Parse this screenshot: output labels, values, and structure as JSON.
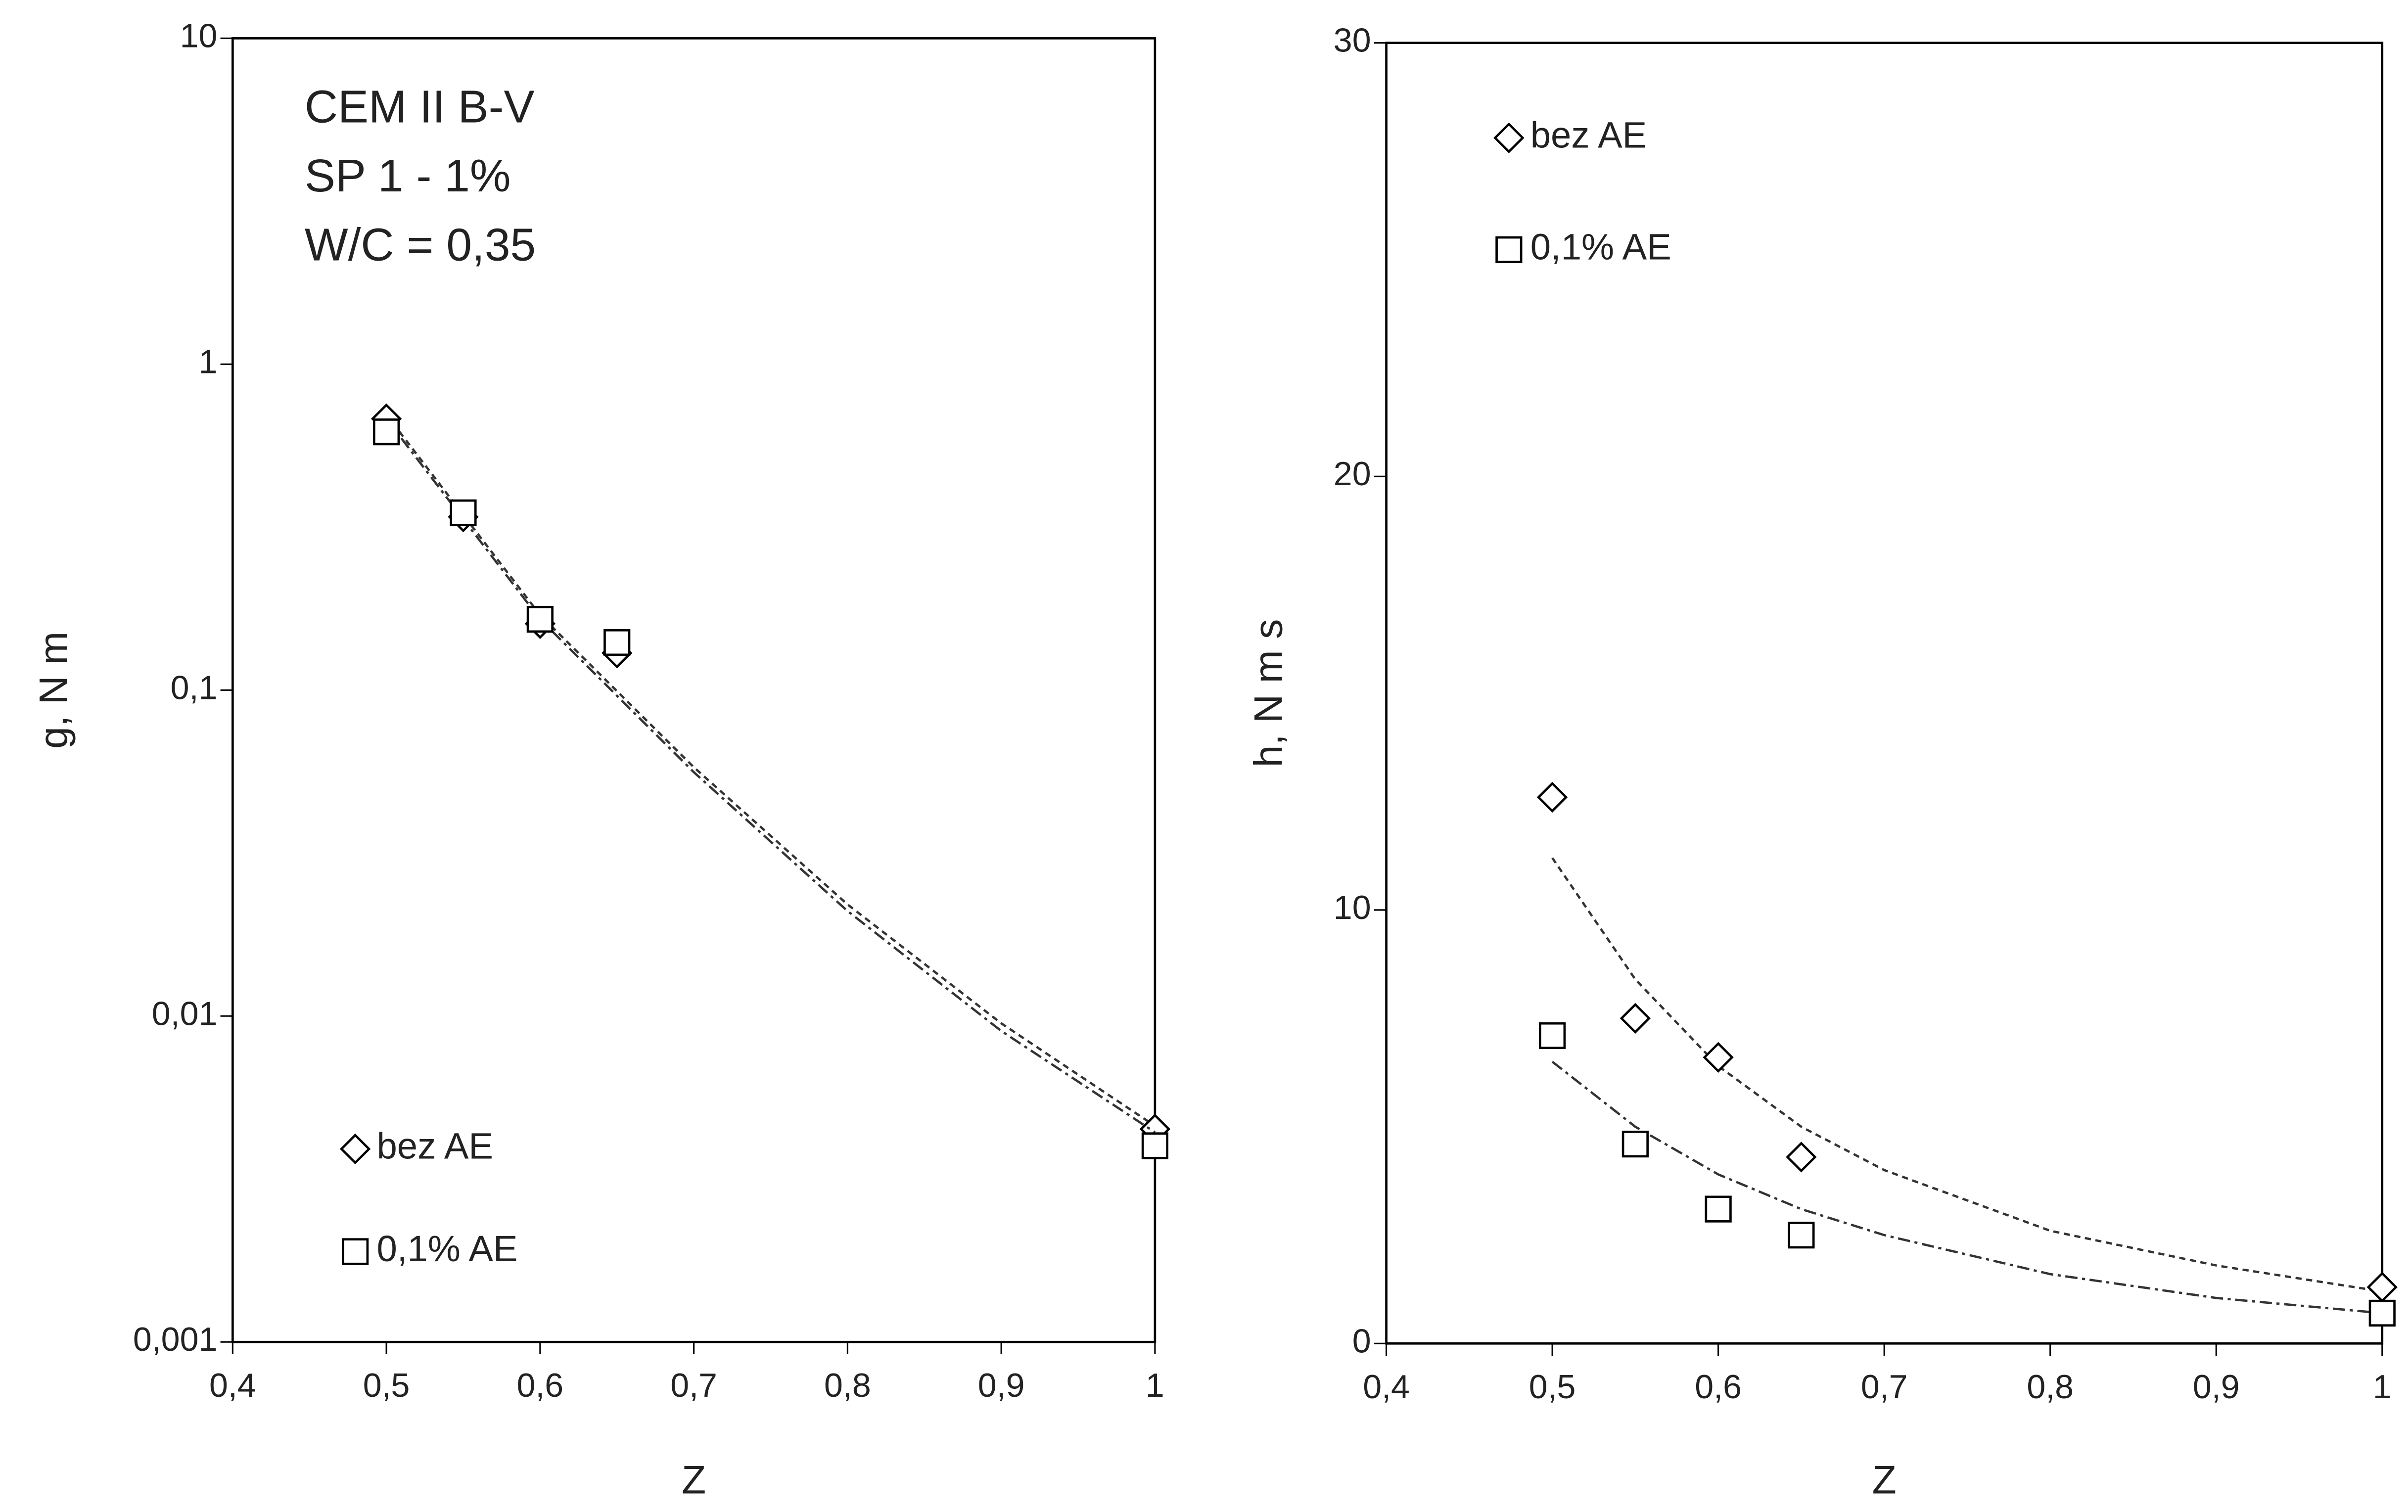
{
  "chart_data": [
    {
      "type": "scatter",
      "xlabel": "Z",
      "ylabel": "g, N m",
      "annotations": [
        "CEM II B-V",
        "SP 1 - 1%",
        "W/C = 0,35"
      ],
      "xlim": [
        0.4,
        1
      ],
      "xticks": [
        {
          "value": 0.4,
          "label": "0,4"
        },
        {
          "value": 0.5,
          "label": "0,5"
        },
        {
          "value": 0.6,
          "label": "0,6"
        },
        {
          "value": 0.7,
          "label": "0,7"
        },
        {
          "value": 0.8,
          "label": "0,8"
        },
        {
          "value": 0.9,
          "label": "0,9"
        },
        1
      ],
      "ylim": [
        0.001,
        10
      ],
      "yscale": "log",
      "yticks": [
        {
          "value": 0.001,
          "label": "0,001"
        },
        {
          "value": 0.01,
          "label": "0,01"
        },
        {
          "value": 0.1,
          "label": "0,1"
        },
        1,
        10
      ],
      "legend": "lower left",
      "series": [
        {
          "name": "bez AE",
          "marker": "diamond",
          "color": "#000000",
          "x": [
            0.5,
            0.55,
            0.6,
            0.65,
            1
          ],
          "values": [
            0.68,
            0.34,
            0.16,
            0.13,
            0.0045
          ],
          "trend_x": [
            0.5,
            0.6,
            0.7,
            0.8,
            0.9,
            1
          ],
          "trend_values": [
            0.7,
            0.17,
            0.058,
            0.022,
            0.0095,
            0.0046
          ]
        },
        {
          "name": "0,1% AE",
          "marker": "square",
          "color": "#000000",
          "x": [
            0.5,
            0.55,
            0.6,
            0.65,
            1
          ],
          "values": [
            0.62,
            0.35,
            0.165,
            0.14,
            0.004
          ],
          "trend_x": [
            0.5,
            0.6,
            0.7,
            0.8,
            0.9,
            1
          ],
          "trend_values": [
            0.68,
            0.165,
            0.056,
            0.021,
            0.009,
            0.0044
          ]
        }
      ]
    },
    {
      "type": "scatter",
      "xlabel": "Z",
      "ylabel": "h, N m s",
      "xlim": [
        0.4,
        1
      ],
      "xticks": [
        {
          "value": 0.4,
          "label": "0,4"
        },
        {
          "value": 0.5,
          "label": "0,5"
        },
        {
          "value": 0.6,
          "label": "0,6"
        },
        {
          "value": 0.7,
          "label": "0,7"
        },
        {
          "value": 0.8,
          "label": "0,8"
        },
        {
          "value": 0.9,
          "label": "0,9"
        },
        1
      ],
      "ylim": [
        0,
        30
      ],
      "yticks": [
        0,
        10,
        20,
        30
      ],
      "legend": "upper left",
      "series": [
        {
          "name": "bez AE",
          "marker": "diamond",
          "color": "#000000",
          "x": [
            0.5,
            0.55,
            0.6,
            0.65,
            1
          ],
          "values": [
            12.6,
            7.5,
            6.6,
            4.3,
            1.3
          ],
          "trend_x": [
            0.5,
            0.55,
            0.6,
            0.65,
            0.7,
            0.8,
            0.9,
            1
          ],
          "trend_values": [
            11.2,
            8.4,
            6.4,
            5.0,
            4.0,
            2.6,
            1.8,
            1.2
          ]
        },
        {
          "name": "0,1% AE",
          "marker": "square",
          "color": "#000000",
          "x": [
            0.5,
            0.55,
            0.6,
            0.65,
            1
          ],
          "values": [
            7.1,
            4.6,
            3.1,
            2.5,
            0.7
          ],
          "trend_x": [
            0.5,
            0.55,
            0.6,
            0.65,
            0.7,
            0.8,
            0.9,
            1
          ],
          "trend_values": [
            6.5,
            5.0,
            3.9,
            3.1,
            2.5,
            1.6,
            1.05,
            0.7
          ]
        }
      ]
    }
  ]
}
